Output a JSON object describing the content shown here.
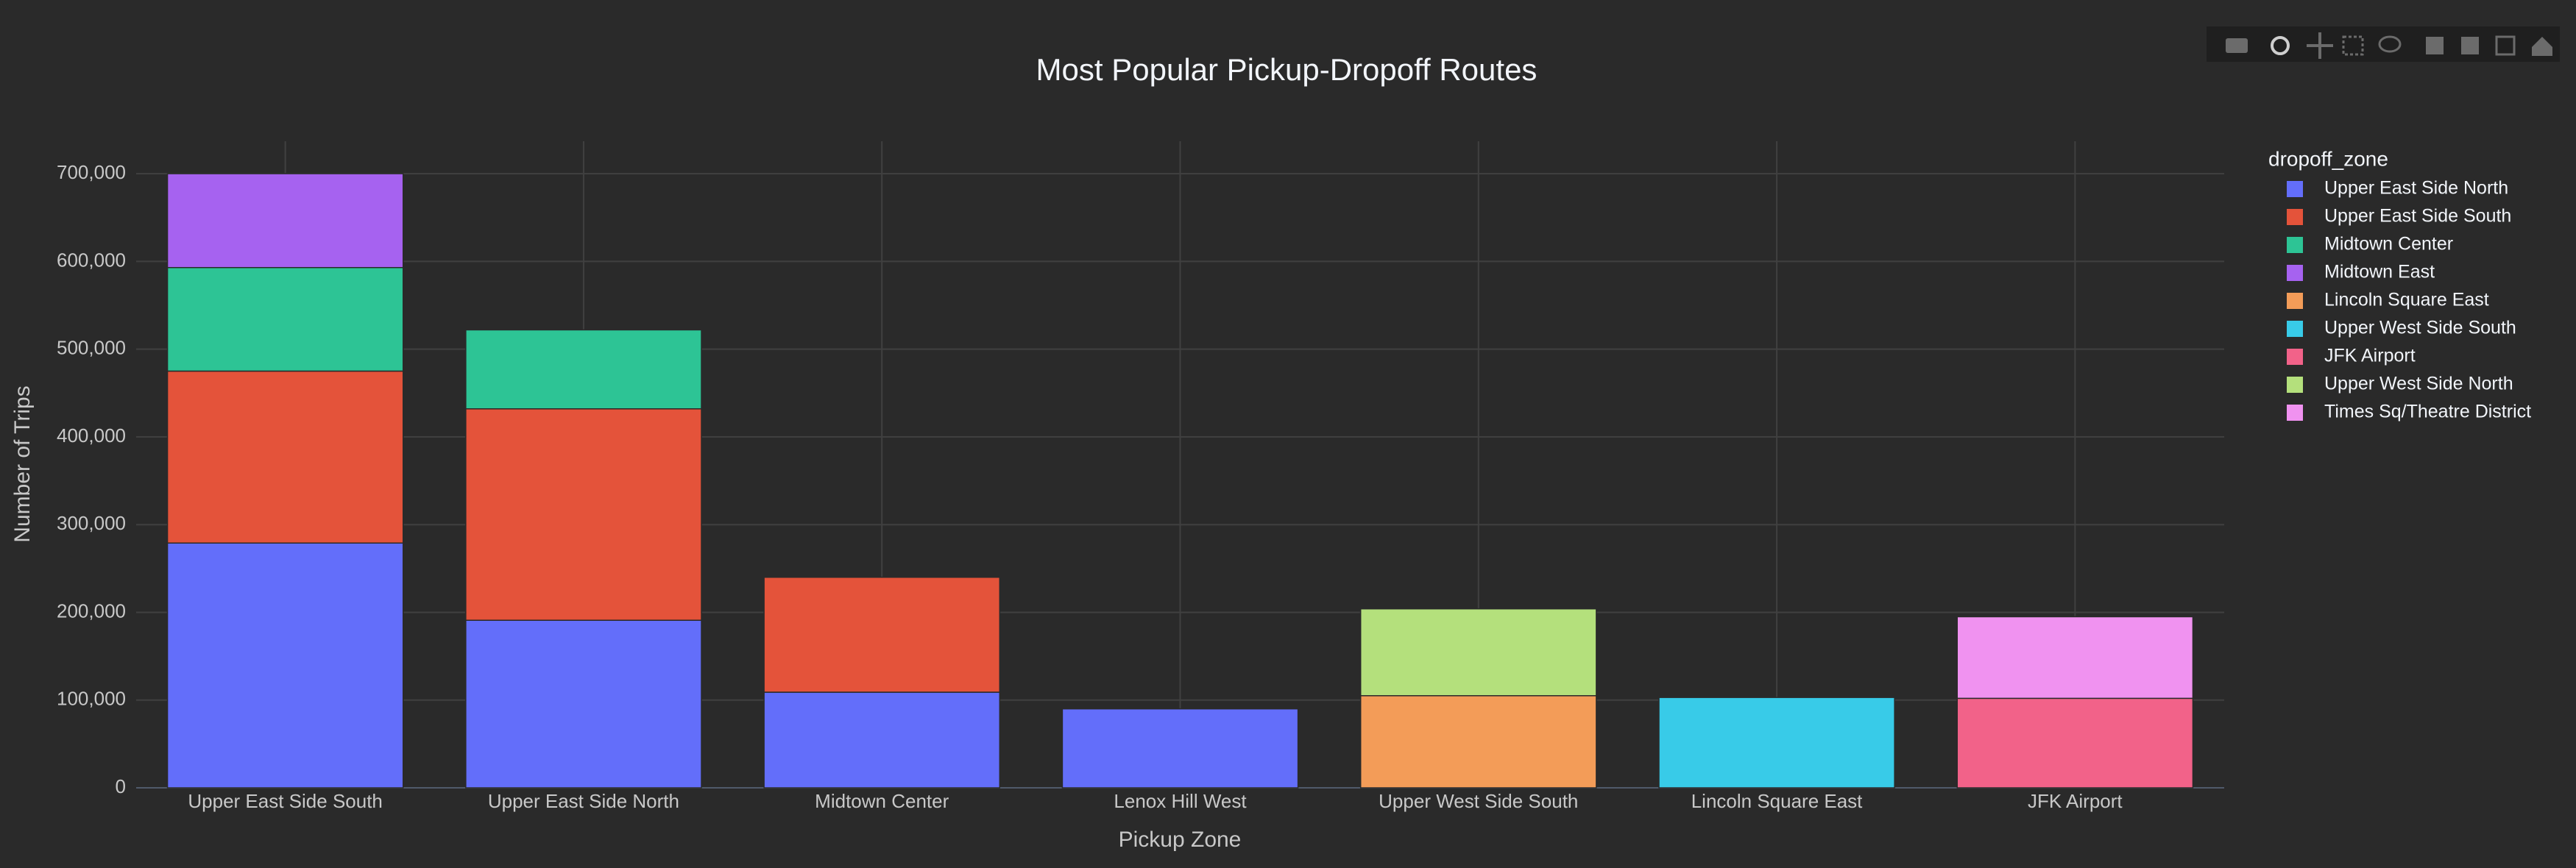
{
  "chart_data": {
    "type": "stacked_bar",
    "title": "Most Popular Pickup-Dropoff Routes",
    "x_label": "Pickup Zone",
    "y_label": "Number of Trips",
    "legend_title": "dropoff_zone",
    "categories": [
      "Upper East Side South",
      "Upper East Side North",
      "Midtown Center",
      "Lenox Hill West",
      "Upper West Side South",
      "Lincoln Square East",
      "JFK Airport"
    ],
    "series": [
      {
        "name": "Upper East Side North",
        "color": "#636efa",
        "values": [
          279000,
          191000,
          109000,
          90000,
          null,
          null,
          null
        ]
      },
      {
        "name": "Upper East Side South",
        "color": "#e4533a",
        "values": [
          196000,
          241000,
          131000,
          null,
          null,
          null,
          null
        ]
      },
      {
        "name": "Midtown Center",
        "color": "#2dc495",
        "values": [
          118000,
          90000,
          null,
          null,
          null,
          null,
          null
        ]
      },
      {
        "name": "Midtown East",
        "color": "#a662f0",
        "values": [
          107000,
          null,
          null,
          null,
          null,
          null,
          null
        ]
      },
      {
        "name": "Lincoln Square East",
        "color": "#f39c58",
        "values": [
          null,
          null,
          null,
          null,
          105000,
          null,
          null
        ]
      },
      {
        "name": "Upper West Side South",
        "color": "#38cbe8",
        "values": [
          null,
          null,
          null,
          null,
          null,
          103000,
          null
        ]
      },
      {
        "name": "JFK Airport",
        "color": "#f26289",
        "values": [
          null,
          null,
          null,
          null,
          null,
          null,
          102000
        ]
      },
      {
        "name": "Upper West Side North",
        "color": "#b4e07c",
        "values": [
          null,
          null,
          null,
          null,
          99000,
          null,
          null
        ]
      },
      {
        "name": "Times Sq/Theatre District",
        "color": "#f092f0",
        "values": [
          null,
          null,
          null,
          null,
          null,
          null,
          93000
        ]
      }
    ],
    "ylim": [
      0,
      737000
    ],
    "yticks": [
      0,
      {
        "value": 100000,
        "label": "100,000"
      },
      {
        "value": 200000,
        "label": "200,000"
      },
      {
        "value": 300000,
        "label": "300,000"
      },
      {
        "value": 400000,
        "label": "400,000"
      },
      {
        "value": 500000,
        "label": "500,000"
      },
      {
        "value": 600000,
        "label": "600,000"
      },
      {
        "value": 700000,
        "label": "700,000"
      }
    ],
    "grid": true
  }
}
